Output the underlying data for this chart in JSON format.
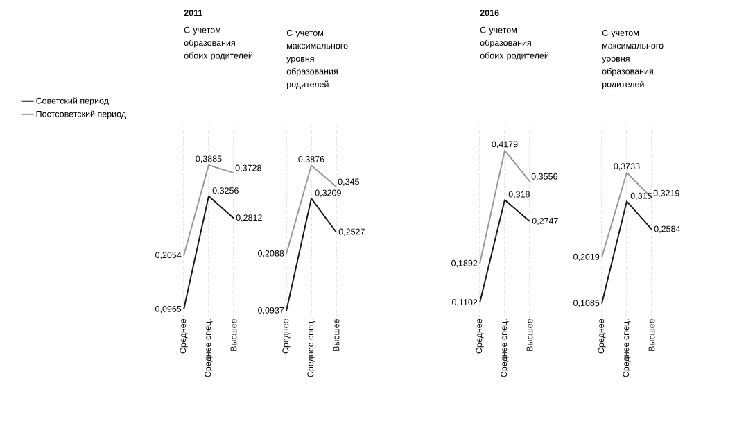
{
  "chart_data": [
    {
      "type": "line",
      "title": "2011",
      "subtitle": "С учетом образования обоих родителей",
      "categories": [
        "Среднее",
        "Среднее спец.",
        "Высшее"
      ],
      "legend": "left",
      "grid": "x",
      "tick_labels": "x",
      "marker": "none",
      "line_style": "solid",
      "series": [
        {
          "name": "Советский период",
          "color": "#1a1a1a",
          "values": [
            0.0965,
            0.3256,
            0.2812
          ],
          "value_labels": [
            "0,0965",
            "0,3256",
            "0,2812"
          ]
        },
        {
          "name": "Постсоветский период",
          "color": "#999999",
          "values": [
            0.2054,
            0.3885,
            0.3728
          ],
          "value_labels": [
            "0,2054",
            "0,3885",
            "0,3728"
          ]
        }
      ]
    },
    {
      "type": "line",
      "subtitle": "С учетом максимального уровня образования родителей",
      "categories": [
        "Среднее",
        "Среднее спец.",
        "Высшее"
      ],
      "grid": "x",
      "tick_labels": "x",
      "marker": "none",
      "line_style": "solid",
      "series": [
        {
          "color": "#1a1a1a",
          "values": [
            0.0937,
            0.3209,
            0.2527
          ],
          "value_labels": [
            "0,0937",
            "0,3209",
            "0,2527"
          ]
        },
        {
          "color": "#999999",
          "values": [
            0.2088,
            0.3876,
            0.345
          ],
          "value_labels": [
            "0,2088",
            "0,3876",
            "0,345"
          ]
        }
      ]
    },
    {
      "type": "line",
      "title": "2016",
      "subtitle": "С учетом образования обоих родителей",
      "categories": [
        "Среднее",
        "Среднее спец.",
        "Высшее"
      ],
      "grid": "x",
      "tick_labels": "x",
      "marker": "none",
      "line_style": "solid",
      "series": [
        {
          "color": "#1a1a1a",
          "values": [
            0.1102,
            0.318,
            0.2747
          ],
          "value_labels": [
            "0,1102",
            "0,318",
            "0,2747"
          ]
        },
        {
          "color": "#999999",
          "values": [
            0.1892,
            0.4179,
            0.3556
          ],
          "value_labels": [
            "0,1892",
            "0,4179",
            "0,3556"
          ]
        }
      ]
    },
    {
      "type": "line",
      "subtitle": "С учетом максимального уровня образования родителей",
      "categories": [
        "Среднее",
        "Среднее спец.",
        "Высшее"
      ],
      "grid": "x",
      "tick_labels": "x",
      "marker": "none",
      "line_style": "solid",
      "series": [
        {
          "color": "#1a1a1a",
          "values": [
            0.1085,
            0.315,
            0.2584
          ],
          "value_labels": [
            "0,1085",
            "0,315",
            "0,2584"
          ]
        },
        {
          "color": "#999999",
          "values": [
            0.2019,
            0.3733,
            0.3219
          ],
          "value_labels": [
            "0,2019",
            "0,3733",
            "0,3219"
          ]
        }
      ]
    }
  ]
}
